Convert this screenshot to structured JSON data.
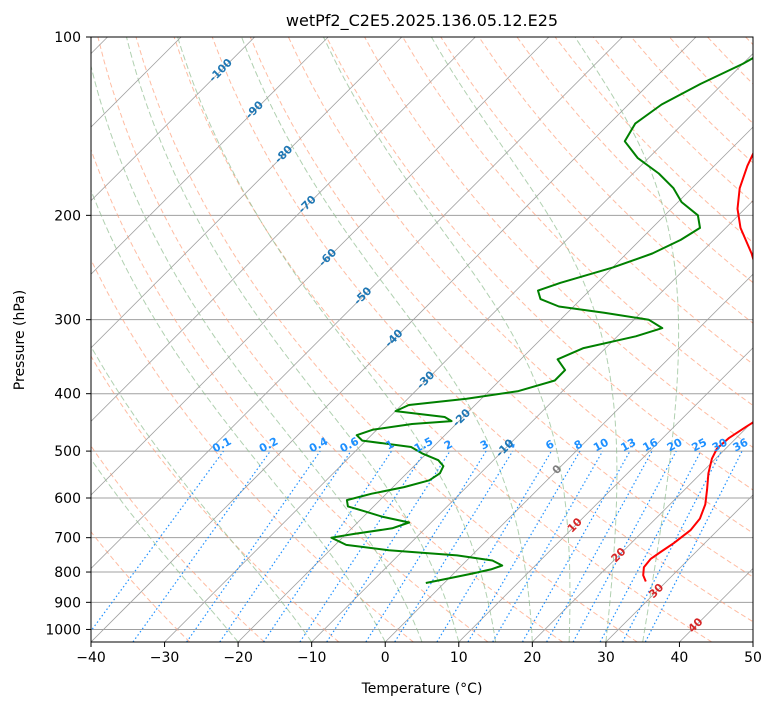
{
  "chart_data": {
    "type": "line",
    "subtype": "skew-t log-p diagram",
    "title": "wetPf2_C2E5.2025.136.05.12.E25",
    "xlabel": "Temperature (°C)",
    "ylabel": "Pressure (hPa)",
    "xlim": [
      -40,
      50
    ],
    "ylim": [
      1050,
      100
    ],
    "y_scale": "log",
    "x_ticks": [
      "−40",
      "−30",
      "−20",
      "−10",
      "0",
      "10",
      "20",
      "30",
      "40",
      "50"
    ],
    "y_ticks": [
      "100",
      "200",
      "300",
      "400",
      "500",
      "600",
      "700",
      "800",
      "900",
      "1000"
    ],
    "grid": true,
    "colors": {
      "temperature": "#ff0000",
      "dewpoint": "#008000",
      "isotherm_grid": "#a0a0a0",
      "dry_adiabat": "#ffa07a",
      "moist_adiabat": "#8fbc8f",
      "mixing_ratio": "#1e90ff",
      "isotherm_label": "#1f77b4",
      "dry_adiabat_label": "#d62728"
    },
    "series": [
      {
        "name": "Temperature",
        "color": "#ff0000",
        "points": [
          [
            27.2,
            830
          ],
          [
            26.0,
            810
          ],
          [
            25.0,
            785
          ],
          [
            24.8,
            760
          ],
          [
            25.2,
            740
          ],
          [
            25.8,
            715
          ],
          [
            26.3,
            680
          ],
          [
            26.0,
            650
          ],
          [
            24.8,
            615
          ],
          [
            23.0,
            580
          ],
          [
            21.0,
            545
          ],
          [
            19.5,
            515
          ],
          [
            18.8,
            495
          ],
          [
            19.0,
            475
          ],
          [
            19.8,
            455
          ],
          [
            20.5,
            440
          ],
          [
            20.4,
            420
          ],
          [
            18.5,
            400
          ],
          [
            14.5,
            365
          ],
          [
            10.5,
            330
          ],
          [
            8.5,
            308
          ],
          [
            6.0,
            285
          ],
          [
            2.5,
            262
          ],
          [
            -3.0,
            232
          ],
          [
            -8.0,
            210
          ],
          [
            -11.0,
            195
          ],
          [
            -13.5,
            180
          ],
          [
            -15.5,
            165
          ],
          [
            -17.0,
            152
          ],
          [
            -18.0,
            140
          ],
          [
            -20.5,
            128
          ],
          [
            -23.5,
            118
          ],
          [
            -26.0,
            112
          ],
          [
            -28.0,
            106
          ],
          [
            -29.0,
            100
          ]
        ]
      },
      {
        "name": "Dewpoint",
        "color": "#008000",
        "points": [
          [
            -2.5,
            835
          ],
          [
            0.0,
            820
          ],
          [
            2.5,
            805
          ],
          [
            4.5,
            792
          ],
          [
            5.5,
            780
          ],
          [
            3.5,
            765
          ],
          [
            -2.0,
            750
          ],
          [
            -12.0,
            735
          ],
          [
            -18.5,
            720
          ],
          [
            -21.5,
            700
          ],
          [
            -19.0,
            690
          ],
          [
            -14.5,
            675
          ],
          [
            -13.0,
            660
          ],
          [
            -17.5,
            645
          ],
          [
            -20.5,
            632
          ],
          [
            -23.5,
            620
          ],
          [
            -24.5,
            605
          ],
          [
            -22.0,
            590
          ],
          [
            -18.5,
            575
          ],
          [
            -16.0,
            560
          ],
          [
            -15.5,
            545
          ],
          [
            -16.0,
            530
          ],
          [
            -17.5,
            518
          ],
          [
            -20.5,
            505
          ],
          [
            -23.0,
            492
          ],
          [
            -30.5,
            480
          ],
          [
            -32.0,
            470
          ],
          [
            -30.5,
            460
          ],
          [
            -26.0,
            450
          ],
          [
            -21.0,
            445
          ],
          [
            -22.5,
            438
          ],
          [
            -30.0,
            428
          ],
          [
            -29.0,
            418
          ],
          [
            -22.0,
            408
          ],
          [
            -16.0,
            396
          ],
          [
            -12.5,
            380
          ],
          [
            -12.5,
            365
          ],
          [
            -15.0,
            350
          ],
          [
            -13.0,
            335
          ],
          [
            -7.5,
            320
          ],
          [
            -5.0,
            310
          ],
          [
            -8.0,
            300
          ],
          [
            -15.0,
            292
          ],
          [
            -22.0,
            285
          ],
          [
            -25.5,
            277
          ],
          [
            -27.0,
            268
          ],
          [
            -25.0,
            260
          ],
          [
            -20.0,
            245
          ],
          [
            -16.5,
            232
          ],
          [
            -14.5,
            220
          ],
          [
            -13.5,
            210
          ],
          [
            -15.5,
            200
          ],
          [
            -19.5,
            190
          ],
          [
            -22.5,
            180
          ],
          [
            -26.5,
            170
          ],
          [
            -31.5,
            160
          ],
          [
            -35.5,
            150
          ],
          [
            -36.5,
            140
          ],
          [
            -35.5,
            130
          ],
          [
            -33.0,
            120
          ],
          [
            -30.0,
            111
          ],
          [
            -28.5,
            105
          ],
          [
            -27.5,
            100
          ]
        ]
      }
    ],
    "isotherm_labels": [
      "-100",
      "-90",
      "-80",
      "-70",
      "-60",
      "-50",
      "-40",
      "-30",
      "-20",
      "-10",
      "0",
      "10",
      "20",
      "30",
      "40"
    ],
    "mixing_ratio_labels": [
      "0.1",
      "0.2",
      "0.4",
      "0.6",
      "1",
      "1.5",
      "2",
      "3",
      "4",
      "6",
      "8",
      "10",
      "13",
      "16",
      "20",
      "25",
      "30",
      "36"
    ]
  }
}
